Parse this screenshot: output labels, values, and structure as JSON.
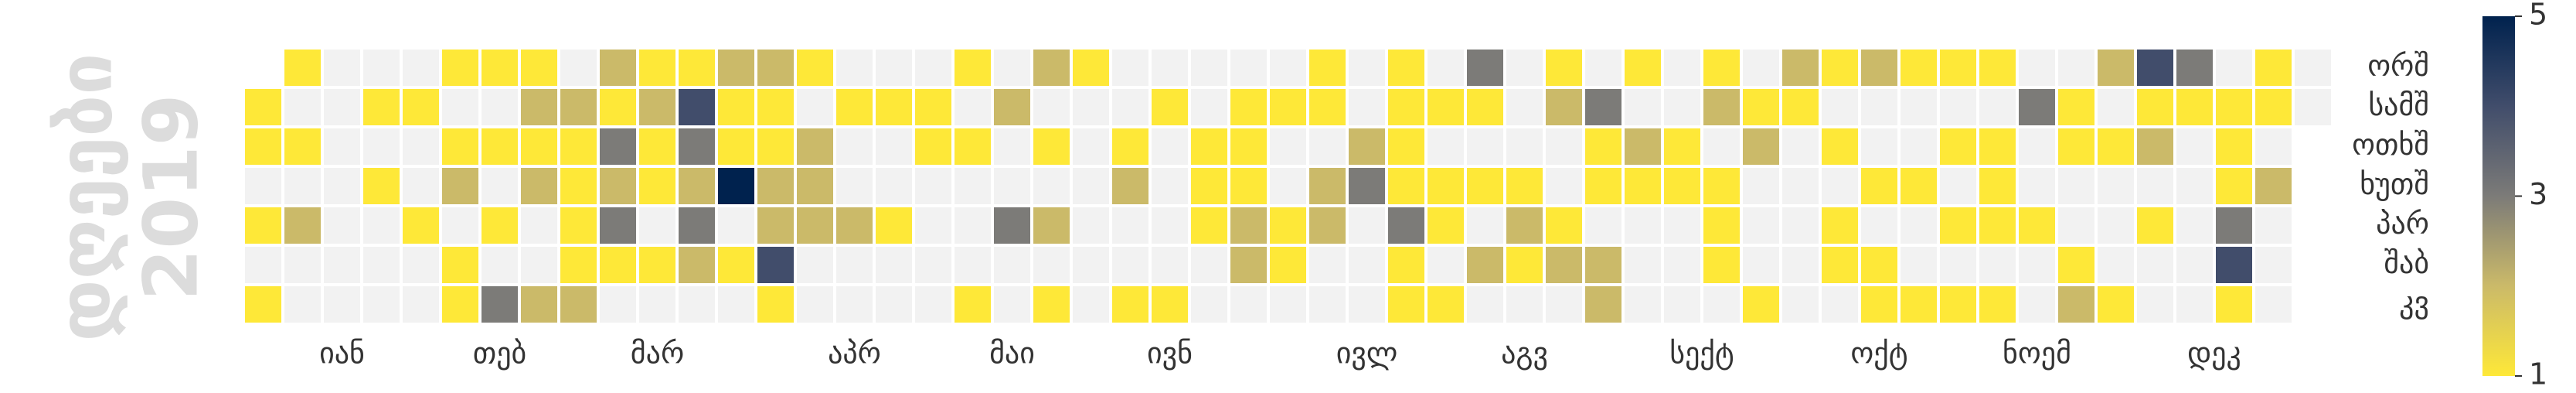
{
  "chart_data": {
    "type": "calendar",
    "label": "დღეები",
    "year": 2019,
    "weekdays": [
      "ორშ",
      "სამშ",
      "ოთხშ",
      "ხუთშ",
      "პარ",
      "შაბ",
      "კვ"
    ],
    "months": [
      "იან",
      "თებ",
      "მარ",
      "აპრ",
      "მაი",
      "ივნ",
      "ივლ",
      "აგვ",
      "სექტ",
      "ოქტ",
      "ნოემ",
      "დეკ"
    ],
    "values": [
      1,
      1,
      null,
      1,
      null,
      1,
      1,
      null,
      1,
      null,
      2,
      null,
      null,
      null,
      null,
      null,
      null,
      null,
      null,
      null,
      null,
      1,
      null,
      1,
      null,
      null,
      null,
      null,
      1,
      null,
      null,
      1,
      null,
      null,
      1,
      null,
      1,
      2,
      null,
      1,
      1,
      1,
      null,
      1,
      null,
      1,
      null,
      3,
      1,
      2,
      1,
      2,
      null,
      null,
      2,
      null,
      2,
      1,
      1,
      1,
      1,
      2,
      2,
      1,
      3,
      2,
      3,
      1,
      null,
      1,
      2,
      1,
      1,
      null,
      1,
      null,
      1,
      4,
      3,
      2,
      3,
      2,
      null,
      2,
      1,
      1,
      5,
      null,
      1,
      null,
      2,
      1,
      1,
      2,
      2,
      4,
      1,
      1,
      null,
      2,
      2,
      2,
      null,
      null,
      null,
      1,
      null,
      null,
      2,
      null,
      null,
      null,
      1,
      null,
      null,
      1,
      null,
      null,
      null,
      1,
      1,
      null,
      null,
      null,
      null,
      1,
      null,
      1,
      null,
      null,
      null,
      1,
      null,
      2,
      null,
      null,
      3,
      null,
      null,
      2,
      null,
      1,
      null,
      2,
      null,
      1,
      1,
      null,
      null,
      null,
      null,
      null,
      null,
      null,
      null,
      1,
      2,
      null,
      null,
      1,
      null,
      1,
      null,
      null,
      null,
      null,
      1,
      null,
      null,
      1,
      1,
      1,
      null,
      null,
      null,
      1,
      1,
      1,
      2,
      2,
      null,
      null,
      1,
      null,
      null,
      1,
      1,
      null,
      1,
      1,
      null,
      2,
      2,
      null,
      null,
      null,
      null,
      2,
      3,
      null,
      null,
      null,
      1,
      1,
      1,
      1,
      3,
      1,
      1,
      null,
      1,
      null,
      1,
      1,
      null,
      1,
      3,
      1,
      null,
      1,
      null,
      2,
      null,
      null,
      null,
      null,
      1,
      2,
      1,
      null,
      1,
      2,
      null,
      null,
      1,
      2,
      null,
      null,
      3,
      1,
      1,
      null,
      2,
      2,
      1,
      null,
      2,
      1,
      null,
      null,
      null,
      null,
      null,
      1,
      1,
      null,
      null,
      null,
      1,
      2,
      null,
      1,
      1,
      1,
      null,
      null,
      1,
      2,
      null,
      null,
      null,
      1,
      2,
      1,
      null,
      null,
      null,
      null,
      null,
      1,
      null,
      1,
      null,
      1,
      1,
      null,
      2,
      null,
      null,
      1,
      null,
      1,
      1,
      1,
      null,
      null,
      1,
      null,
      null,
      1,
      1,
      null,
      1,
      null,
      1,
      null,
      1,
      1,
      null,
      1,
      1,
      1,
      null,
      1,
      null,
      3,
      null,
      null,
      1,
      null,
      null,
      null,
      1,
      1,
      null,
      null,
      1,
      2,
      2,
      null,
      1,
      null,
      null,
      null,
      1,
      4,
      1,
      2,
      null,
      1,
      null,
      null,
      3,
      1,
      null,
      null,
      null,
      null,
      null,
      null,
      1,
      1,
      1,
      3,
      4,
      1,
      1,
      1,
      null,
      2,
      null,
      null,
      null,
      null,
      null
    ],
    "clim": [
      1,
      5
    ],
    "cticks": [
      1,
      3,
      5
    ],
    "colormap": [
      "#fee838",
      "#cbba69",
      "#7c7b78",
      "#414d6b",
      "#00224e"
    ],
    "empty_color": "#f2f2f2"
  }
}
